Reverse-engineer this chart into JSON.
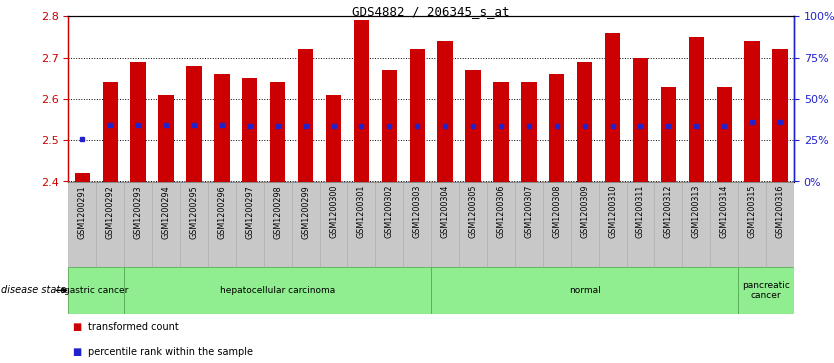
{
  "title": "GDS4882 / 206345_s_at",
  "samples": [
    "GSM1200291",
    "GSM1200292",
    "GSM1200293",
    "GSM1200294",
    "GSM1200295",
    "GSM1200296",
    "GSM1200297",
    "GSM1200298",
    "GSM1200299",
    "GSM1200300",
    "GSM1200301",
    "GSM1200302",
    "GSM1200303",
    "GSM1200304",
    "GSM1200305",
    "GSM1200306",
    "GSM1200307",
    "GSM1200308",
    "GSM1200309",
    "GSM1200310",
    "GSM1200311",
    "GSM1200312",
    "GSM1200313",
    "GSM1200314",
    "GSM1200315",
    "GSM1200316"
  ],
  "bar_tops": [
    2.42,
    2.64,
    2.69,
    2.61,
    2.68,
    2.66,
    2.65,
    2.64,
    2.72,
    2.61,
    2.79,
    2.67,
    2.72,
    2.74,
    2.67,
    2.64,
    2.64,
    2.66,
    2.69,
    2.76,
    2.7,
    2.63,
    2.75,
    2.63,
    2.74,
    2.72
  ],
  "bar_bottom": 2.4,
  "blue_markers": [
    2.502,
    2.538,
    2.538,
    2.538,
    2.538,
    2.538,
    2.535,
    2.535,
    2.535,
    2.535,
    2.535,
    2.535,
    2.535,
    2.535,
    2.535,
    2.535,
    2.535,
    2.535,
    2.535,
    2.535,
    2.535,
    2.535,
    2.535,
    2.535,
    2.545,
    2.545
  ],
  "bar_color": "#CC0000",
  "blue_color": "#2222CC",
  "ylim_min": 2.4,
  "ylim_max": 2.8,
  "yticks_left": [
    2.4,
    2.5,
    2.6,
    2.7,
    2.8
  ],
  "ytick_left_labels": [
    "2.4",
    "2.5",
    "2.6",
    "2.7",
    "2.8"
  ],
  "yticks_right_labels": [
    "0%",
    "25%",
    "50%",
    "75%",
    "100%"
  ],
  "yticks_right_vals": [
    2.4,
    2.5,
    2.6,
    2.7,
    2.8
  ],
  "disease_groups": [
    {
      "label": "gastric cancer",
      "start": 0,
      "end": 2
    },
    {
      "label": "hepatocellular carcinoma",
      "start": 2,
      "end": 13
    },
    {
      "label": "normal",
      "start": 13,
      "end": 24
    },
    {
      "label": "pancreatic\ncancer",
      "start": 24,
      "end": 26
    }
  ],
  "group_color": "#90EE90",
  "group_border_color": "#55AA55",
  "xticklabel_bg": "#C8C8C8",
  "xticklabel_border": "#AAAAAA",
  "left_axis_color": "#CC0000",
  "right_axis_color": "#2222CC",
  "title_fontsize": 9,
  "bar_width": 0.55
}
